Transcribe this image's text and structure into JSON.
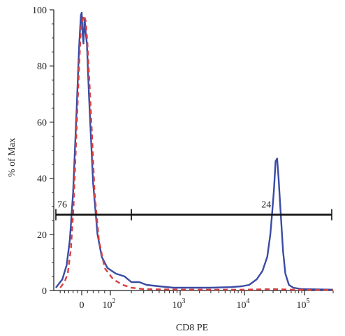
{
  "chart_data": {
    "type": "line",
    "title": "",
    "xlabel": "CD8 PE",
    "ylabel": "% of Max",
    "x_scale": "biexponential (logicle)",
    "x_tick_labels": [
      "0",
      "10^2",
      "10^3",
      "10^4",
      "10^5"
    ],
    "y_ticks": [
      0,
      20,
      40,
      60,
      80,
      100
    ],
    "ylim": [
      0,
      100
    ],
    "grid": false,
    "legend": "none",
    "series": [
      {
        "color": "#3a4ba3",
        "style": "solid",
        "points": [
          [
            -120,
            1
          ],
          [
            -90,
            4
          ],
          [
            -70,
            9
          ],
          [
            -55,
            18
          ],
          [
            -40,
            35
          ],
          [
            -25,
            62
          ],
          [
            -12,
            87
          ],
          [
            -4,
            98
          ],
          [
            0,
            99
          ],
          [
            3,
            92
          ],
          [
            6,
            88
          ],
          [
            10,
            97
          ],
          [
            14,
            92
          ],
          [
            18,
            88
          ],
          [
            25,
            70
          ],
          [
            32,
            55
          ],
          [
            40,
            38
          ],
          [
            55,
            20
          ],
          [
            70,
            12
          ],
          [
            90,
            8
          ],
          [
            120,
            6
          ],
          [
            160,
            5
          ],
          [
            200,
            3
          ],
          [
            260,
            3
          ],
          [
            330,
            2
          ],
          [
            500,
            1.5
          ],
          [
            800,
            1
          ],
          [
            1500,
            1
          ],
          [
            3000,
            1
          ],
          [
            6000,
            1.2
          ],
          [
            9000,
            1.5
          ],
          [
            12000,
            2
          ],
          [
            16000,
            4
          ],
          [
            20000,
            7
          ],
          [
            24000,
            12
          ],
          [
            27000,
            20
          ],
          [
            29000,
            28
          ],
          [
            31000,
            36
          ],
          [
            33000,
            46
          ],
          [
            35000,
            47
          ],
          [
            37000,
            40
          ],
          [
            40000,
            28
          ],
          [
            44000,
            14
          ],
          [
            48000,
            6
          ],
          [
            55000,
            2
          ],
          [
            65000,
            1
          ],
          [
            90000,
            0.5
          ],
          [
            200000,
            0.3
          ]
        ]
      },
      {
        "color": "#d94040",
        "style": "dashed",
        "points": [
          [
            -100,
            1
          ],
          [
            -80,
            3
          ],
          [
            -65,
            6
          ],
          [
            -50,
            15
          ],
          [
            -38,
            30
          ],
          [
            -25,
            55
          ],
          [
            -12,
            80
          ],
          [
            -4,
            93
          ],
          [
            2,
            96
          ],
          [
            8,
            98
          ],
          [
            14,
            96
          ],
          [
            20,
            88
          ],
          [
            28,
            72
          ],
          [
            36,
            55
          ],
          [
            45,
            35
          ],
          [
            60,
            18
          ],
          [
            80,
            8
          ],
          [
            110,
            4
          ],
          [
            150,
            2
          ],
          [
            200,
            1
          ],
          [
            300,
            0.5
          ],
          [
            1000,
            0.3
          ],
          [
            10000,
            0.3
          ],
          [
            30000,
            0.5
          ],
          [
            60000,
            0.3
          ],
          [
            200000,
            0.2
          ]
        ]
      }
    ],
    "gate": {
      "y": 27,
      "x_start": -120,
      "x_mid": 200,
      "x_end": 200000,
      "left_label": "76",
      "right_label": "24"
    }
  }
}
